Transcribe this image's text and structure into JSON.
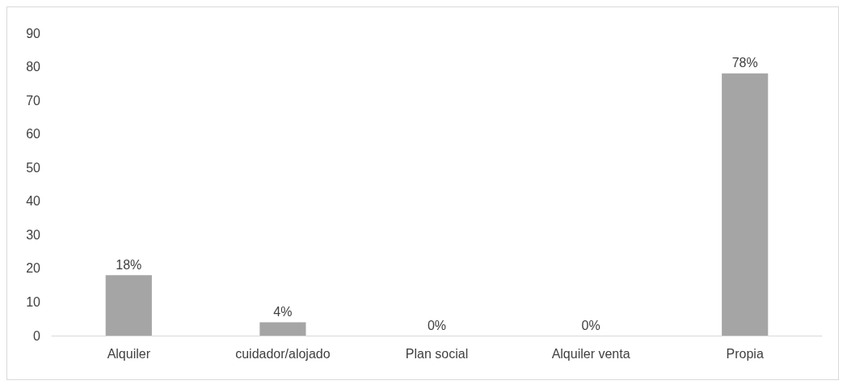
{
  "chart_data": {
    "type": "bar",
    "categories": [
      "Alquiler",
      "cuidador/alojado",
      "Plan social",
      "Alquiler venta",
      "Propia"
    ],
    "values": [
      18,
      4,
      0,
      0,
      78
    ],
    "color": "#a5a5a5",
    "value_labels": [
      "18%",
      "4%",
      "0%",
      "0%",
      "78%"
    ],
    "ylim": [
      0,
      90
    ],
    "yticks": [
      0,
      10,
      20,
      30,
      40,
      50,
      60,
      70,
      80,
      90
    ]
  }
}
